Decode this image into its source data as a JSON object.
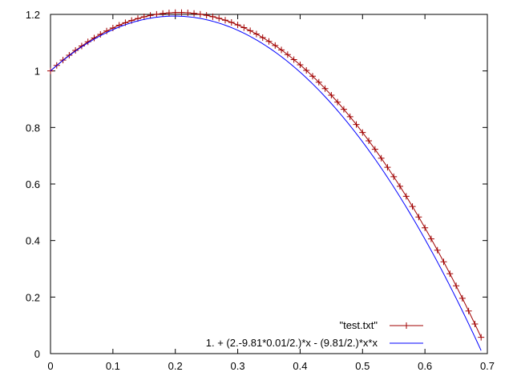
{
  "chart_data": {
    "type": "line",
    "xlim": [
      0,
      0.7
    ],
    "ylim": [
      0,
      1.2
    ],
    "x_ticks": [
      "0",
      "0.1",
      "0.2",
      "0.3",
      "0.4",
      "0.5",
      "0.6",
      "0.7"
    ],
    "y_ticks": [
      "0",
      "0.2",
      "0.4",
      "0.6",
      "0.8",
      "1",
      "1.2"
    ],
    "grid": false,
    "legend_position": "bottom-right",
    "series": [
      {
        "name": "\"test.txt\"",
        "style": "linespoints",
        "marker": "plus",
        "color": "#a00000",
        "points": [
          [
            0.0,
            1.0
          ],
          [
            0.01,
            1.0196
          ],
          [
            0.02,
            1.0382
          ],
          [
            0.03,
            1.0558
          ],
          [
            0.04,
            1.0725
          ],
          [
            0.05,
            1.0882
          ],
          [
            0.06,
            1.1029
          ],
          [
            0.07,
            1.1166
          ],
          [
            0.08,
            1.1294
          ],
          [
            0.09,
            1.1412
          ],
          [
            0.1,
            1.152
          ],
          [
            0.11,
            1.1618
          ],
          [
            0.12,
            1.1707
          ],
          [
            0.13,
            1.1785
          ],
          [
            0.14,
            1.1854
          ],
          [
            0.15,
            1.1914
          ],
          [
            0.16,
            1.1963
          ],
          [
            0.17,
            1.2003
          ],
          [
            0.18,
            1.2033
          ],
          [
            0.19,
            1.2053
          ],
          [
            0.2,
            1.2063
          ],
          [
            0.21,
            1.2064
          ],
          [
            0.22,
            1.2055
          ],
          [
            0.23,
            1.2036
          ],
          [
            0.24,
            1.2007
          ],
          [
            0.25,
            1.1969
          ],
          [
            0.26,
            1.192
          ],
          [
            0.27,
            1.1862
          ],
          [
            0.28,
            1.1794
          ],
          [
            0.29,
            1.1717
          ],
          [
            0.3,
            1.1629
          ],
          [
            0.31,
            1.1532
          ],
          [
            0.32,
            1.1425
          ],
          [
            0.33,
            1.1308
          ],
          [
            0.34,
            1.1181
          ],
          [
            0.35,
            1.1045
          ],
          [
            0.36,
            1.0899
          ],
          [
            0.37,
            1.0743
          ],
          [
            0.38,
            1.0577
          ],
          [
            0.39,
            1.0401
          ],
          [
            0.4,
            1.0216
          ],
          [
            0.41,
            1.002
          ],
          [
            0.42,
            0.9815
          ],
          [
            0.43,
            0.9601
          ],
          [
            0.44,
            0.9376
          ],
          [
            0.45,
            0.9142
          ],
          [
            0.46,
            0.8897
          ],
          [
            0.47,
            0.8643
          ],
          [
            0.48,
            0.838
          ],
          [
            0.49,
            0.8106
          ],
          [
            0.5,
            0.7823
          ],
          [
            0.51,
            0.7529
          ],
          [
            0.52,
            0.7226
          ],
          [
            0.53,
            0.6914
          ],
          [
            0.54,
            0.6591
          ],
          [
            0.55,
            0.6259
          ],
          [
            0.56,
            0.5917
          ],
          [
            0.57,
            0.5565
          ],
          [
            0.58,
            0.5203
          ],
          [
            0.59,
            0.4832
          ],
          [
            0.6,
            0.445
          ],
          [
            0.61,
            0.4059
          ],
          [
            0.62,
            0.3658
          ],
          [
            0.63,
            0.3248
          ],
          [
            0.64,
            0.2827
          ],
          [
            0.65,
            0.2397
          ],
          [
            0.66,
            0.1957
          ],
          [
            0.67,
            0.1507
          ],
          [
            0.68,
            0.1047
          ],
          [
            0.69,
            0.0578
          ]
        ]
      },
      {
        "name": "1. + (2.-9.81*0.01/2.)*x - (9.81/2.)*x*x",
        "style": "lines",
        "color": "#0000ff",
        "function": {
          "a": 1.0,
          "b": 1.95095,
          "c": -4.905
        },
        "x_range": [
          0,
          0.69
        ]
      }
    ]
  }
}
